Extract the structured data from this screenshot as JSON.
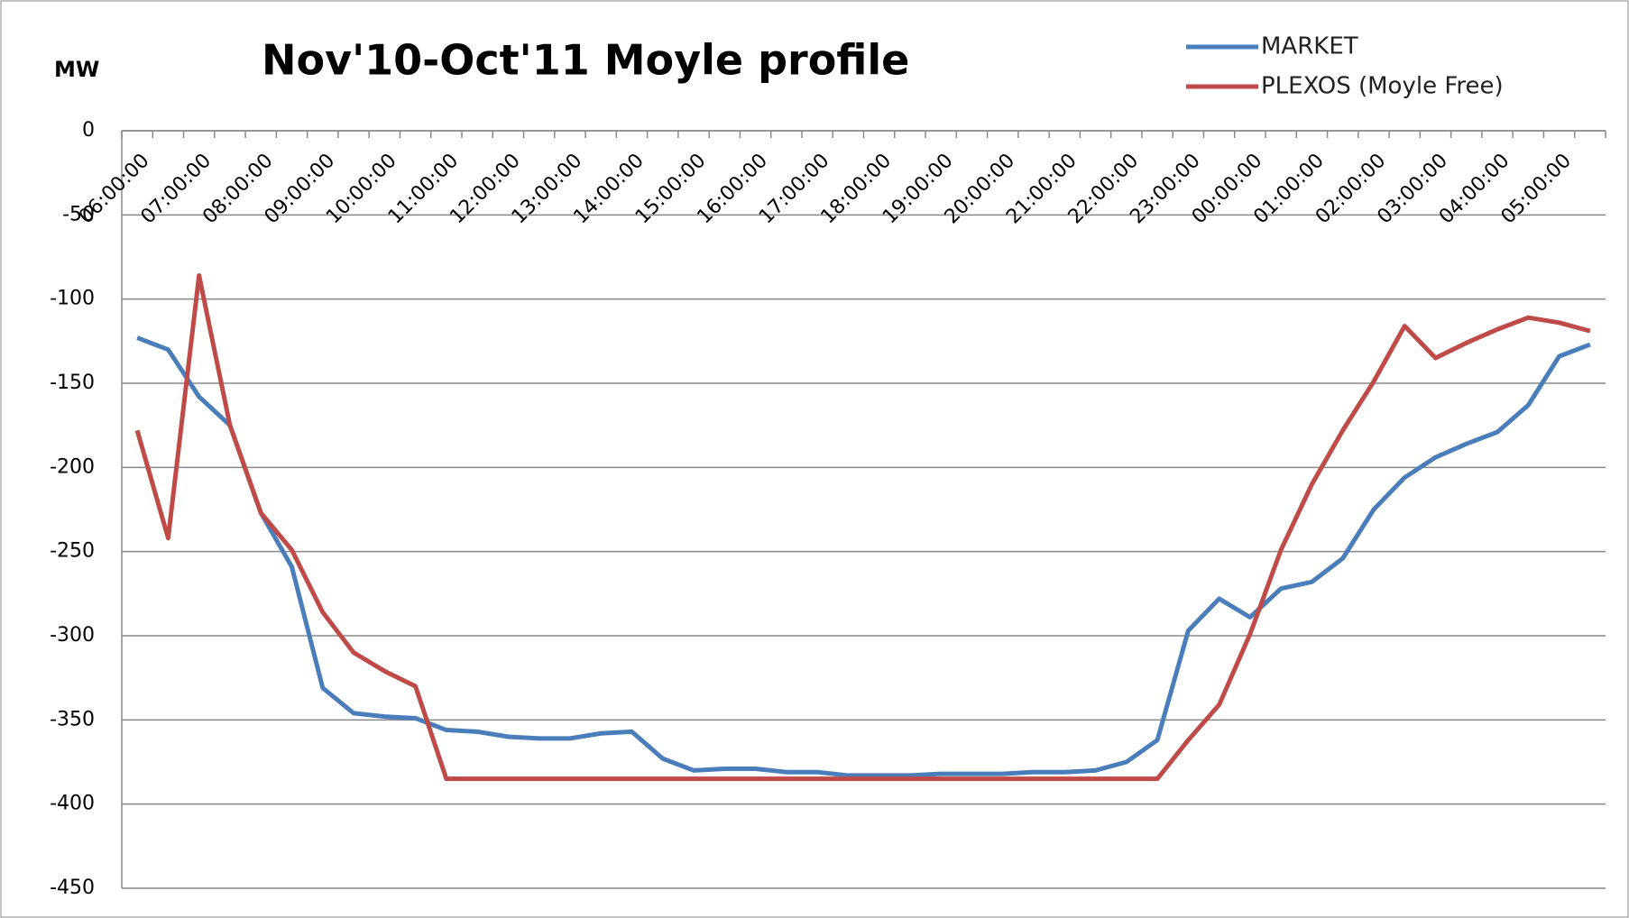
{
  "chart_data": {
    "type": "line",
    "title": "Nov'10-Oct'11  Moyle profile",
    "y_label": "MW",
    "categories": [
      "06:00:00",
      null,
      "07:00:00",
      null,
      "08:00:00",
      null,
      "09:00:00",
      null,
      "10:00:00",
      null,
      "11:00:00",
      null,
      "12:00:00",
      null,
      "13:00:00",
      null,
      "14:00:00",
      null,
      "15:00:00",
      null,
      "16:00:00",
      null,
      "17:00:00",
      null,
      "18:00:00",
      null,
      "19:00:00",
      null,
      "20:00:00",
      null,
      "21:00:00",
      null,
      "22:00:00",
      null,
      "23:00:00",
      null,
      "00:00:00",
      null,
      "01:00:00",
      null,
      "02:00:00",
      null,
      "03:00:00",
      null,
      "04:00:00",
      null,
      "05:00:00",
      null
    ],
    "series": [
      {
        "name": "MARKET",
        "color": "#4a7ebb",
        "values": [
          -123,
          -130,
          -158,
          -175,
          -227,
          -259,
          -331,
          -346,
          -348,
          -349,
          -356,
          -357,
          -360,
          -361,
          -361,
          -358,
          -357,
          -373,
          -380,
          -379,
          -379,
          -381,
          -381,
          -383,
          -383,
          -383,
          -382,
          -382,
          -382,
          -381,
          -381,
          -380,
          -375,
          -362,
          -297,
          -278,
          -289,
          -272,
          -268,
          -254,
          -225,
          -206,
          -194,
          -186,
          -179,
          -163,
          -134,
          -127
        ]
      },
      {
        "name": "PLEXOS (Moyle Free)",
        "color": "#be4b48",
        "values": [
          -178,
          -242,
          -86,
          -175,
          -227,
          -249,
          -286,
          -310,
          -321,
          -330,
          -385,
          -385,
          -385,
          -385,
          -385,
          -385,
          -385,
          -385,
          -385,
          -385,
          -385,
          -385,
          -385,
          -385,
          -385,
          -385,
          -385,
          -385,
          -385,
          -385,
          -385,
          -385,
          -385,
          -385,
          -362,
          -341,
          -299,
          -249,
          -210,
          -178,
          -149,
          -116,
          -135,
          -126,
          -118,
          -111,
          -114,
          -119
        ]
      }
    ],
    "ylim": [
      -450,
      0
    ],
    "yticks": [
      -450,
      -400,
      -350,
      -300,
      -250,
      -200,
      -150,
      -100,
      -50,
      0
    ],
    "grid": true
  }
}
